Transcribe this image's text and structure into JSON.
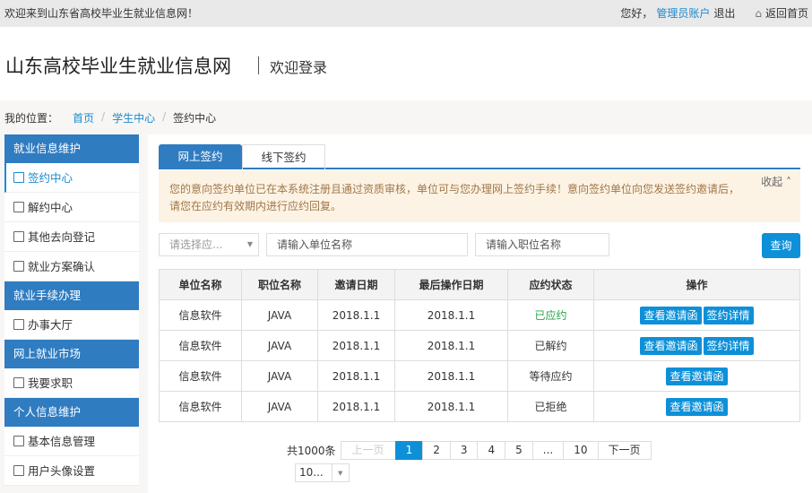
{
  "topbar": {
    "welcome": "欢迎来到山东省高校毕业生就业信息网！",
    "greeting": "您好，",
    "user": "管理员账户",
    "logout": "退出",
    "home": "返回首页"
  },
  "header": {
    "title": "山东高校毕业生就业信息网",
    "subtitle": "欢迎登录"
  },
  "breadcrumb": {
    "label": "我的位置：",
    "items": [
      "首页",
      "学生中心",
      "签约中心"
    ]
  },
  "sidebar": [
    {
      "group": "就业信息维护",
      "items": [
        {
          "label": "签约中心",
          "icon": "sign-doc-icon",
          "active": true
        },
        {
          "label": "解约中心",
          "icon": "cancel-doc-icon"
        },
        {
          "label": "其他去向登记",
          "icon": "edit-doc-icon"
        },
        {
          "label": "就业方案确认",
          "icon": "briefcase-icon"
        }
      ]
    },
    {
      "group": "就业手续办理",
      "items": [
        {
          "label": "办事大厅",
          "icon": "compass-icon"
        }
      ]
    },
    {
      "group": "网上就业市场",
      "items": [
        {
          "label": "我要求职",
          "icon": "list-icon"
        }
      ]
    },
    {
      "group": "个人信息维护",
      "items": [
        {
          "label": "基本信息管理",
          "icon": "list-icon"
        },
        {
          "label": "用户头像设置",
          "icon": "camera-icon"
        }
      ]
    }
  ],
  "tabs": [
    "网上签约",
    "线下签约"
  ],
  "notice": {
    "text": "您的意向签约单位已在本系统注册且通过资质审核，单位可与您办理网上签约手续！意向签约单位向您发送签约邀请后，请您在应约有效期内进行应约回复。",
    "collapse": "收起"
  },
  "filters": {
    "select_placeholder": "请选择应...",
    "company_placeholder": "请输入单位名称",
    "position_placeholder": "请输入职位名称",
    "query": "查询"
  },
  "table": {
    "headers": [
      "单位名称",
      "职位名称",
      "邀请日期",
      "最后操作日期",
      "应约状态",
      "操作"
    ],
    "rows": [
      {
        "company": "信息软件",
        "position": "JAVA",
        "invite": "2018.1.1",
        "last": "2018.1.1",
        "status": "已应约",
        "actions": [
          "查看邀请函",
          "签约详情"
        ]
      },
      {
        "company": "信息软件",
        "position": "JAVA",
        "invite": "2018.1.1",
        "last": "2018.1.1",
        "status": "已解约",
        "actions": [
          "查看邀请函",
          "签约详情"
        ]
      },
      {
        "company": "信息软件",
        "position": "JAVA",
        "invite": "2018.1.1",
        "last": "2018.1.1",
        "status": "等待应约",
        "actions": [
          "查看邀请函"
        ]
      },
      {
        "company": "信息软件",
        "position": "JAVA",
        "invite": "2018.1.1",
        "last": "2018.1.1",
        "status": "已拒绝",
        "actions": [
          "查看邀请函"
        ]
      }
    ]
  },
  "pagination": {
    "total": "共1000条",
    "prev": "上一页",
    "pages": [
      "1",
      "2",
      "3",
      "4",
      "5",
      "...",
      "10"
    ],
    "current": "1",
    "next": "下一页",
    "page_size": "10..."
  },
  "colors": {
    "primary": "#2f7cc1",
    "button": "#0e90d8",
    "accepted": "#2aa34a"
  }
}
